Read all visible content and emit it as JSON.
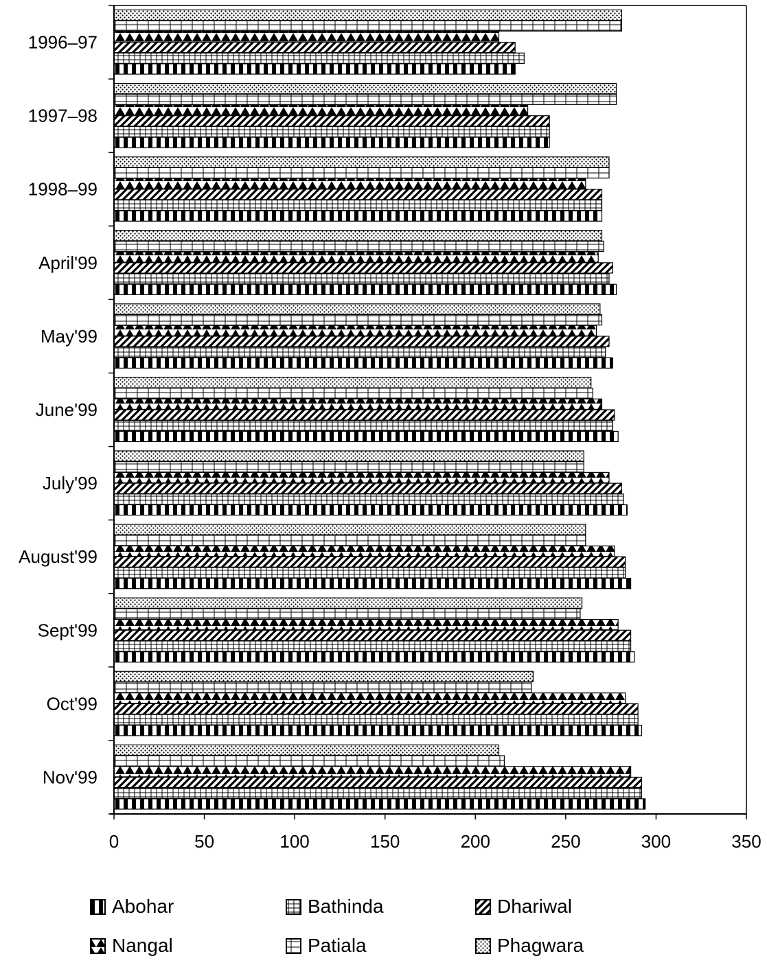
{
  "chart_data": {
    "type": "bar",
    "orientation": "horizontal",
    "title": "",
    "xlabel": "",
    "ylabel": "",
    "categories": [
      "1996–97",
      "1997–98",
      "1998–99",
      "April'99",
      "May'99",
      "June'99",
      "July'99",
      "August'99",
      "Sept'99",
      "Oct'99",
      "Nov'99"
    ],
    "xlim": [
      0,
      350
    ],
    "xticks": [
      "0",
      "50",
      "100",
      "150",
      "200",
      "250",
      "300",
      "350"
    ],
    "grid": false,
    "legend_position": "bottom",
    "series": [
      {
        "name": "Phagwara",
        "pattern": "dots",
        "values": [
          281,
          278,
          274,
          270,
          269,
          264,
          260,
          261,
          259,
          232,
          213
        ]
      },
      {
        "name": "Patiala",
        "pattern": "hbrick",
        "values": [
          281,
          278,
          274,
          271,
          270,
          265,
          260,
          261,
          258,
          231,
          216
        ]
      },
      {
        "name": "Nangal",
        "pattern": "diamonds",
        "values": [
          213,
          229,
          261,
          268,
          267,
          270,
          274,
          277,
          279,
          283,
          286
        ]
      },
      {
        "name": "Dhariwal",
        "pattern": "diagonal",
        "values": [
          222,
          241,
          270,
          276,
          274,
          277,
          281,
          283,
          286,
          290,
          292
        ]
      },
      {
        "name": "Bathinda",
        "pattern": "grid",
        "values": [
          227,
          241,
          270,
          274,
          272,
          276,
          282,
          283,
          286,
          290,
          292
        ]
      },
      {
        "name": "Abohar",
        "pattern": "checker",
        "values": [
          222,
          241,
          270,
          278,
          276,
          279,
          284,
          286,
          288,
          292,
          294
        ]
      }
    ],
    "legend": [
      {
        "label": "Abohar",
        "pattern": "checker"
      },
      {
        "label": "Bathinda",
        "pattern": "grid"
      },
      {
        "label": "Dhariwal",
        "pattern": "diagonal"
      },
      {
        "label": "Nangal",
        "pattern": "diamonds"
      },
      {
        "label": "Patiala",
        "pattern": "hbrick"
      },
      {
        "label": "Phagwara",
        "pattern": "dots"
      }
    ]
  }
}
